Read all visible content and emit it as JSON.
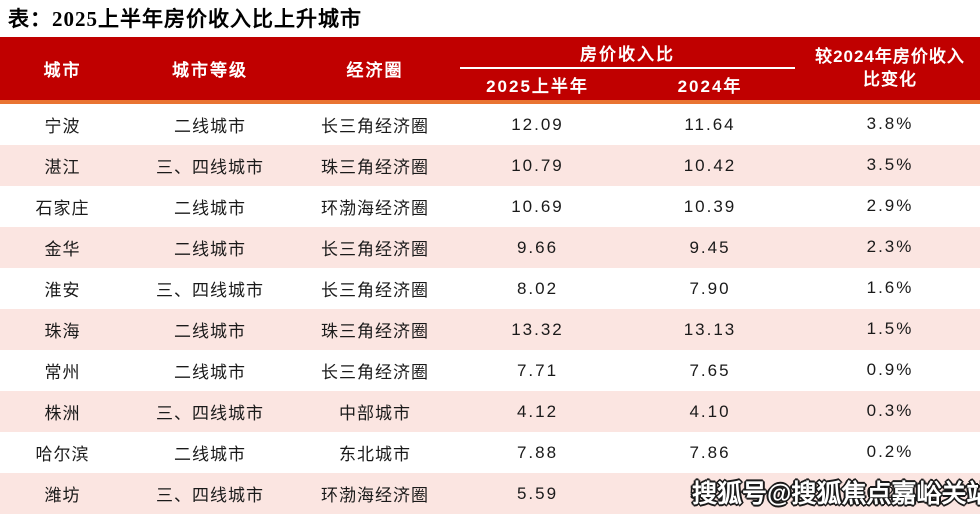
{
  "chart_data": {
    "type": "table",
    "title": "表：2025上半年房价收入比上升城市",
    "header": {
      "city": "城市",
      "tier": "城市等级",
      "region": "经济圈",
      "ratio_group": "房价收入比",
      "sub_2025h1": "2025上半年",
      "sub_2024": "2024年",
      "change": "较2024年房价收入\n比变化"
    },
    "rows": [
      {
        "city": "宁波",
        "tier": "二线城市",
        "region": "长三角经济圈",
        "ratio_2025h1": "12.09",
        "ratio_2024": "11.64",
        "change": "3.8%"
      },
      {
        "city": "湛江",
        "tier": "三、四线城市",
        "region": "珠三角经济圈",
        "ratio_2025h1": "10.79",
        "ratio_2024": "10.42",
        "change": "3.5%"
      },
      {
        "city": "石家庄",
        "tier": "二线城市",
        "region": "环渤海经济圈",
        "ratio_2025h1": "10.69",
        "ratio_2024": "10.39",
        "change": "2.9%"
      },
      {
        "city": "金华",
        "tier": "二线城市",
        "region": "长三角经济圈",
        "ratio_2025h1": "9.66",
        "ratio_2024": "9.45",
        "change": "2.3%"
      },
      {
        "city": "淮安",
        "tier": "三、四线城市",
        "region": "长三角经济圈",
        "ratio_2025h1": "8.02",
        "ratio_2024": "7.90",
        "change": "1.6%"
      },
      {
        "city": "珠海",
        "tier": "二线城市",
        "region": "珠三角经济圈",
        "ratio_2025h1": "13.32",
        "ratio_2024": "13.13",
        "change": "1.5%"
      },
      {
        "city": "常州",
        "tier": "二线城市",
        "region": "长三角经济圈",
        "ratio_2025h1": "7.71",
        "ratio_2024": "7.65",
        "change": "0.9%"
      },
      {
        "city": "株洲",
        "tier": "三、四线城市",
        "region": "中部城市",
        "ratio_2025h1": "4.12",
        "ratio_2024": "4.10",
        "change": "0.3%"
      },
      {
        "city": "哈尔滨",
        "tier": "二线城市",
        "region": "东北城市",
        "ratio_2025h1": "7.88",
        "ratio_2024": "7.86",
        "change": "0.2%"
      },
      {
        "city": "潍坊",
        "tier": "三、四线城市",
        "region": "环渤海经济圈",
        "ratio_2025h1": "5.59",
        "ratio_2024": "5.58",
        "change": "0.2%"
      }
    ]
  },
  "watermark": {
    "text": "搜狐号@搜狐焦点嘉峪关站"
  },
  "colors": {
    "header_red": "#C00000",
    "accent_orange": "#E97432",
    "row_pink": "#FBE5E1"
  }
}
